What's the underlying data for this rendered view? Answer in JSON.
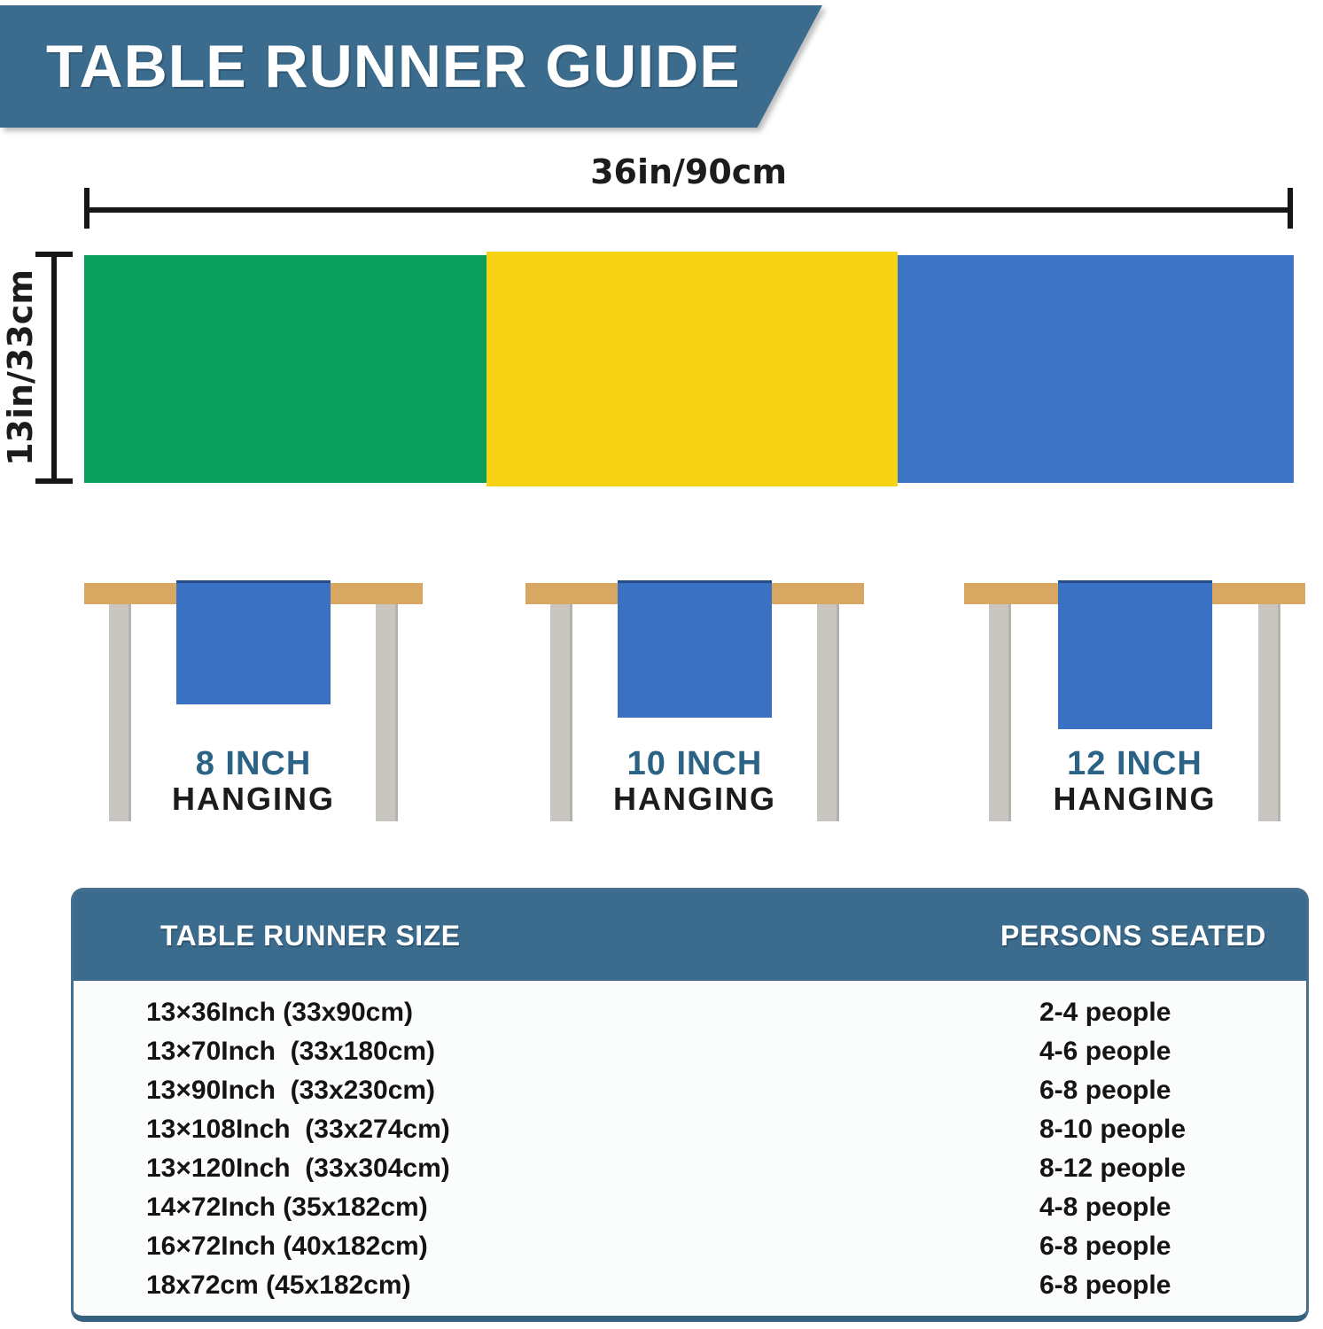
{
  "header": {
    "title": "TABLE RUNNER GUIDE"
  },
  "colors": {
    "banner_bg": "#3b6b8d",
    "accent_text": "#2b6386",
    "runner_green": "#0a9f5d",
    "runner_yellow": "#f7d316",
    "runner_blue": "#3d74c6",
    "hanging_runner_blue": "#3a71c3",
    "tabletop_tan": "#d8a862",
    "leg_gray": "#c9c6c2",
    "card_border_teal": "#35607e",
    "dim_line": "#161616"
  },
  "dimensions": {
    "width_label": "36in/90cm",
    "height_label": "13in/33cm"
  },
  "runner_segments": [
    {
      "name": "green",
      "color": "#0a9f5d"
    },
    {
      "name": "yellow",
      "color": "#f7d316"
    },
    {
      "name": "blue",
      "color": "#3d74c6"
    }
  ],
  "hanging_examples": [
    {
      "label": "8 INCH",
      "sublabel": "HANGING"
    },
    {
      "label": "10 INCH",
      "sublabel": "HANGING"
    },
    {
      "label": "12 INCH",
      "sublabel": "HANGING"
    }
  ],
  "size_table": {
    "col1_header": "TABLE RUNNER SIZE",
    "col2_header": "PERSONS SEATED",
    "rows": [
      {
        "size": "13×36Inch (33x90cm)",
        "persons": "2-4 people"
      },
      {
        "size": "13×70Inch  (33x180cm)",
        "persons": "4-6 people"
      },
      {
        "size": "13×90Inch  (33x230cm)",
        "persons": "6-8 people"
      },
      {
        "size": "13×108Inch  (33x274cm)",
        "persons": "8-10 people"
      },
      {
        "size": "13×120Inch  (33x304cm)",
        "persons": "8-12 people"
      },
      {
        "size": "14×72Inch (35x182cm)",
        "persons": "4-8 people"
      },
      {
        "size": "16×72Inch (40x182cm)",
        "persons": "6-8 people"
      },
      {
        "size": "18x72cm (45x182cm)",
        "persons": "6-8 people"
      }
    ]
  }
}
